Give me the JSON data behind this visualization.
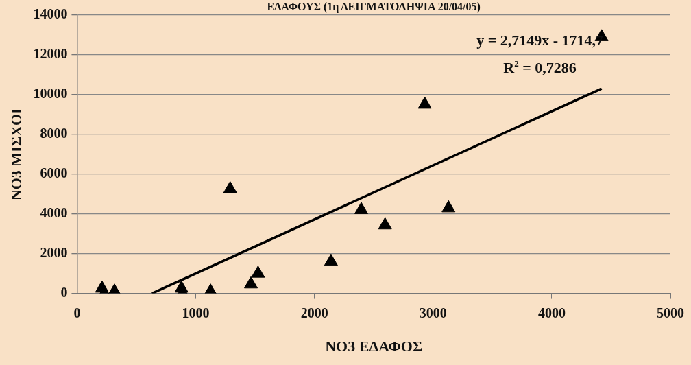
{
  "chart_data": {
    "type": "scatter",
    "title": "ΕΔΑΦΟΥΣ (1η ΔΕΙΓΜΑΤΟΛΗΨΙΑ 20/04/05)",
    "xlabel": "ΝΟ3 ΕΔΑΦΟΣ",
    "ylabel": "ΝΟ3 ΜΙΣΧΟΙ",
    "annotations": [
      "y = 2,7149x - 1714,7",
      "R$^{2}$ = 0,7286"
    ],
    "xlim": [
      0,
      5000
    ],
    "xticks": [
      0,
      1000,
      2000,
      3000,
      4000,
      5000
    ],
    "ylim": [
      0,
      14000
    ],
    "yticks": [
      0,
      2000,
      4000,
      6000,
      8000,
      10000,
      12000,
      14000
    ],
    "grid": "y",
    "legend": false,
    "marker": "triangle",
    "series": [
      {
        "color": "#000000",
        "x": [
          210,
          230,
          315,
          880,
          890,
          1125,
          1290,
          1465,
          1525,
          2140,
          2395,
          2595,
          2930,
          3130,
          4420
        ],
        "values": [
          250,
          0,
          100,
          250,
          0,
          100,
          5250,
          460,
          1000,
          1600,
          4200,
          3430,
          9500,
          4290,
          12900
        ]
      },
      {
        "type": "line",
        "color": "#000000",
        "marker": "none",
        "line_style": "solid",
        "x": [
          632,
          4420
        ],
        "values": [
          0,
          10300
        ]
      }
    ]
  }
}
